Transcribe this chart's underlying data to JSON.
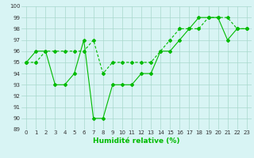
{
  "line1_x": [
    0,
    1,
    2,
    3,
    4,
    5,
    6,
    7,
    8,
    9,
    10,
    11,
    12,
    13,
    14,
    15,
    16,
    17,
    18,
    19,
    20,
    21,
    22,
    23
  ],
  "line1_y": [
    95,
    96,
    96,
    93,
    93,
    94,
    97,
    90,
    90,
    93,
    93,
    93,
    94,
    94,
    96,
    96,
    97,
    98,
    99,
    99,
    99,
    97,
    98,
    98
  ],
  "line2_x": [
    0,
    1,
    2,
    3,
    4,
    5,
    6,
    7,
    8,
    9,
    10,
    11,
    12,
    13,
    14,
    15,
    16,
    17,
    18,
    19,
    20,
    21,
    22,
    23
  ],
  "line2_y": [
    95,
    95,
    96,
    96,
    96,
    96,
    96,
    97,
    94,
    95,
    95,
    95,
    95,
    95,
    96,
    97,
    98,
    98,
    98,
    99,
    99,
    99,
    98,
    98
  ],
  "line_color": "#00bb00",
  "marker": "D",
  "markersize": 2.0,
  "linewidth": 0.8,
  "xlabel": "Humidité relative (%)",
  "ylim": [
    89,
    100
  ],
  "xlim": [
    -0.5,
    23.5
  ],
  "yticks": [
    89,
    90,
    91,
    92,
    93,
    94,
    95,
    96,
    97,
    98,
    99,
    100
  ],
  "xticks": [
    0,
    1,
    2,
    3,
    4,
    5,
    6,
    7,
    8,
    9,
    10,
    11,
    12,
    13,
    14,
    15,
    16,
    17,
    18,
    19,
    20,
    21,
    22,
    23
  ],
  "bg_color": "#d8f4f4",
  "grid_color": "#a8d8cc",
  "tick_fontsize": 5.0,
  "xlabel_fontsize": 6.5
}
